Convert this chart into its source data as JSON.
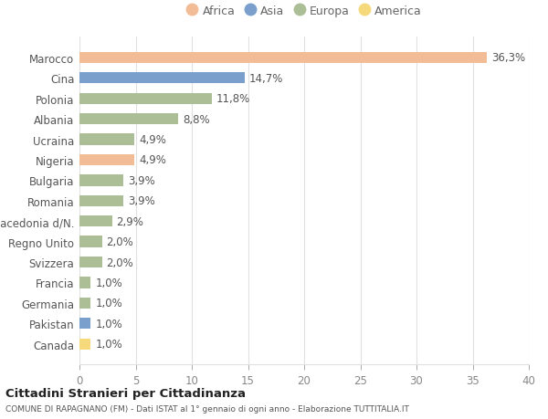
{
  "countries": [
    "Marocco",
    "Cina",
    "Polonia",
    "Albania",
    "Ucraina",
    "Nigeria",
    "Bulgaria",
    "Romania",
    "Macedonia d/N.",
    "Regno Unito",
    "Svizzera",
    "Francia",
    "Germania",
    "Pakistan",
    "Canada"
  ],
  "values": [
    36.3,
    14.7,
    11.8,
    8.8,
    4.9,
    4.9,
    3.9,
    3.9,
    2.9,
    2.0,
    2.0,
    1.0,
    1.0,
    1.0,
    1.0
  ],
  "labels": [
    "36,3%",
    "14,7%",
    "11,8%",
    "8,8%",
    "4,9%",
    "4,9%",
    "3,9%",
    "3,9%",
    "2,9%",
    "2,0%",
    "2,0%",
    "1,0%",
    "1,0%",
    "1,0%",
    "1,0%"
  ],
  "colors": [
    "#F2BC96",
    "#7A9FCC",
    "#ABBE96",
    "#ABBE96",
    "#ABBE96",
    "#F2BC96",
    "#ABBE96",
    "#ABBE96",
    "#ABBE96",
    "#ABBE96",
    "#ABBE96",
    "#ABBE96",
    "#ABBE96",
    "#7A9FCC",
    "#F5D97A"
  ],
  "legend_labels": [
    "Africa",
    "Asia",
    "Europa",
    "America"
  ],
  "legend_colors": [
    "#F2BC96",
    "#7A9FCC",
    "#ABBE96",
    "#F5D97A"
  ],
  "title": "Cittadini Stranieri per Cittadinanza",
  "subtitle": "COMUNE DI RAPAGNANO (FM) - Dati ISTAT al 1° gennaio di ogni anno - Elaborazione TUTTITALIA.IT",
  "xlim": [
    0,
    40
  ],
  "xticks": [
    0,
    5,
    10,
    15,
    20,
    25,
    30,
    35,
    40
  ],
  "background_color": "#ffffff",
  "grid_color": "#e0e0e0",
  "label_fontsize": 8.5,
  "tick_fontsize": 8.5,
  "bar_height": 0.55
}
